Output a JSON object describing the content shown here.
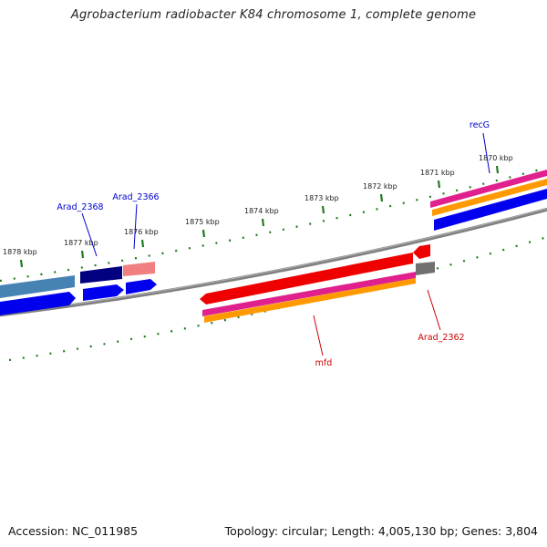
{
  "title": "Agrobacterium radiobacter K84 chromosome 1, complete genome",
  "footer": {
    "accession": "Accession: NC_011985",
    "summary": "Topology: circular; Length: 4,005,130 bp; Genes: 3,804"
  },
  "ticks": [
    {
      "label": "1870 kbp"
    },
    {
      "label": "1871 kbp"
    },
    {
      "label": "1872 kbp"
    },
    {
      "label": "1873 kbp"
    },
    {
      "label": "1874 kbp"
    },
    {
      "label": "1875 kbp"
    },
    {
      "label": "1876 kbp"
    },
    {
      "label": "1877 kbp"
    },
    {
      "label": "1878 kbp"
    }
  ],
  "gene_labels": [
    {
      "name": "recG",
      "color": "#0000cc"
    },
    {
      "name": "Arad_2366",
      "color": "#0000cc"
    },
    {
      "name": "Arad_2368",
      "color": "#0000cc"
    },
    {
      "name": "mfd",
      "color": "#cc0000"
    },
    {
      "name": "Arad_2362",
      "color": "#cc0000"
    }
  ],
  "colors": {
    "backbone": "#808080",
    "tick": "#1f7a1f",
    "forward_gene": "#0000ee",
    "reverse_gene": "#ee0000",
    "magenta_track": "#e0208c",
    "orange_track": "#ff9900",
    "pseudo_gene": "#707070",
    "dark_gene": "#000080",
    "steel_gene": "#4682b4",
    "pink_gene": "#f08080"
  }
}
